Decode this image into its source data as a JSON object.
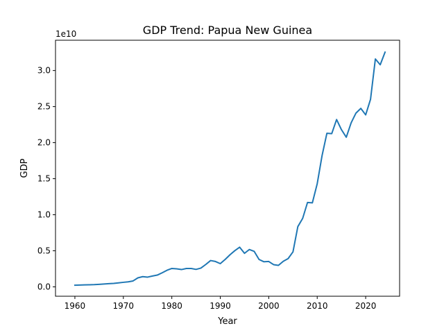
{
  "chart_data": {
    "type": "line",
    "title": "GDP Trend: Papua New Guinea",
    "xlabel": "Year",
    "ylabel": "GDP",
    "y_offset_label": "1e10",
    "y_scale_factor": 10000000000,
    "xlim": [
      1956,
      2027
    ],
    "ylim": [
      -1.3,
      34.2
    ],
    "x_ticks": [
      1960,
      1970,
      1980,
      1990,
      2000,
      2010,
      2020
    ],
    "y_ticks": [
      0,
      5,
      10,
      15,
      20,
      25,
      30
    ],
    "y_tick_labels": [
      "0.0",
      "0.5",
      "1.0",
      "1.5",
      "2.0",
      "2.5",
      "3.0"
    ],
    "grid": false,
    "series": [
      {
        "color": "#1f77b4",
        "x": [
          1960,
          1961,
          1962,
          1963,
          1964,
          1965,
          1966,
          1967,
          1968,
          1969,
          1970,
          1971,
          1972,
          1973,
          1974,
          1975,
          1976,
          1977,
          1978,
          1979,
          1980,
          1981,
          1982,
          1983,
          1984,
          1985,
          1986,
          1987,
          1988,
          1989,
          1990,
          1991,
          1992,
          1993,
          1994,
          1995,
          1996,
          1997,
          1998,
          1999,
          2000,
          2001,
          2002,
          2003,
          2004,
          2005,
          2006,
          2007,
          2008,
          2009,
          2010,
          2011,
          2012,
          2013,
          2014,
          2015,
          2016,
          2017,
          2018,
          2019,
          2020,
          2021,
          2022,
          2023,
          2024
        ],
        "y": [
          0.23,
          0.25,
          0.27,
          0.29,
          0.31,
          0.35,
          0.39,
          0.44,
          0.48,
          0.55,
          0.63,
          0.7,
          0.82,
          1.25,
          1.42,
          1.35,
          1.5,
          1.63,
          1.95,
          2.3,
          2.55,
          2.5,
          2.4,
          2.55,
          2.55,
          2.42,
          2.6,
          3.1,
          3.65,
          3.52,
          3.22,
          3.8,
          4.45,
          5.02,
          5.5,
          4.65,
          5.18,
          4.92,
          3.8,
          3.48,
          3.52,
          3.08,
          2.98,
          3.55,
          3.92,
          4.85,
          8.35,
          9.5,
          11.7,
          11.65,
          14.3,
          18.2,
          21.3,
          21.25,
          23.2,
          21.8,
          20.75,
          22.75,
          24.1,
          24.75,
          23.85,
          26.0,
          31.6,
          30.8,
          32.55
        ]
      }
    ]
  }
}
